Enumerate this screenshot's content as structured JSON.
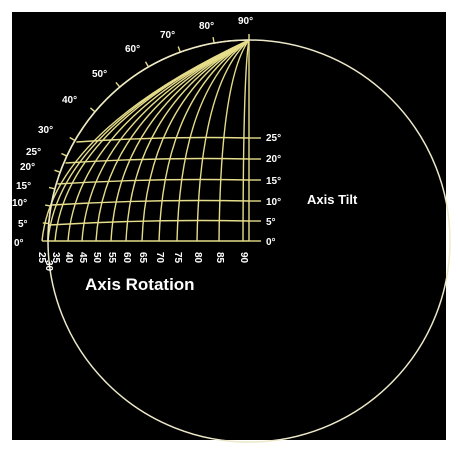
{
  "colors": {
    "background": "#000000",
    "grid": "#e6dd8a",
    "circle": "#ece8c8",
    "text": "#ffffff"
  },
  "diagram": {
    "arc_labels": [
      "0°",
      "5°",
      "10°",
      "15°",
      "20°",
      "25°",
      "30°",
      "40°",
      "50°",
      "60°",
      "70°",
      "80°",
      "90°"
    ],
    "tilt_labels": [
      "0°",
      "5°",
      "10°",
      "15°",
      "20°",
      "25°"
    ],
    "tilt_title": "Axis Tilt",
    "rotation_labels": [
      "25",
      "30",
      "35",
      "40",
      "45",
      "50",
      "55",
      "60",
      "65",
      "70",
      "75",
      "80",
      "85",
      "90"
    ],
    "rotation_title": "Axis Rotation",
    "rotation_values": [
      25,
      30,
      35,
      40,
      45,
      50,
      55,
      60,
      65,
      70,
      75,
      80,
      85,
      90
    ],
    "tilt_values": [
      5,
      10,
      15,
      20,
      25
    ]
  }
}
